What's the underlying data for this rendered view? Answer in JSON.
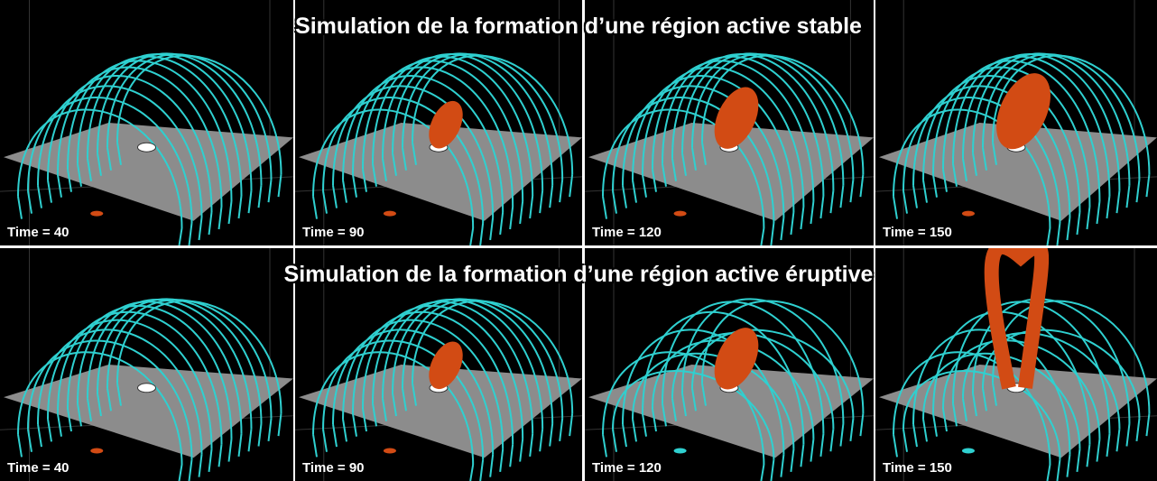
{
  "rows": [
    {
      "title": "Simulation de la formation d’une région active stable",
      "panels": [
        {
          "label": "Time = 40"
        },
        {
          "label": "Time = 90"
        },
        {
          "label": "Time = 120"
        },
        {
          "label": "Time = 150"
        }
      ]
    },
    {
      "title": "Simulation de la formation d’une région active éruptive",
      "panels": [
        {
          "label": "Time = 40"
        },
        {
          "label": "Time = 90"
        },
        {
          "label": "Time = 120"
        },
        {
          "label": "Time = 150"
        }
      ]
    }
  ]
}
